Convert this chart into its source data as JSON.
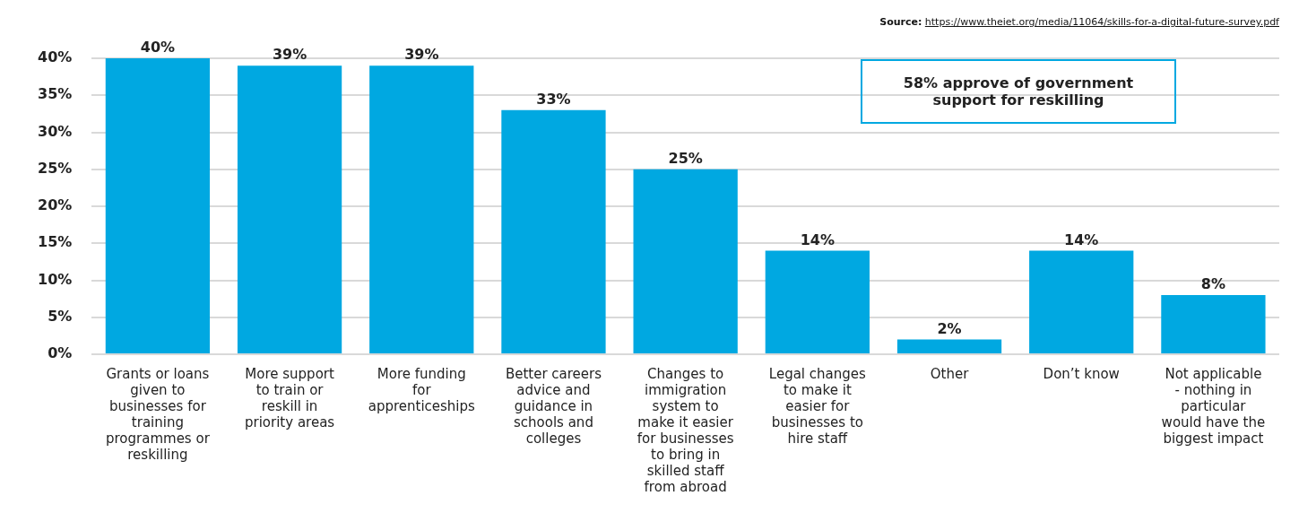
{
  "chart_data": {
    "type": "bar",
    "categories": [
      "Grants or loans given to businesses for training programmes or reskilling",
      "More support to train or reskill in priority areas",
      "More funding for apprenticeships",
      "Better careers advice and guidance in schools and colleges",
      "Changes to immigration system to make it easier for businesses to bring in skilled staff from abroad",
      "Legal changes to make it easier for businesses to hire staff",
      "Other",
      "Don’t know",
      "Not applicable - nothing in particular would have the biggest impact"
    ],
    "values": [
      40,
      39,
      39,
      33,
      25,
      14,
      2,
      14,
      8
    ],
    "value_labels": [
      "40%",
      "39%",
      "39%",
      "33%",
      "25%",
      "14%",
      "2%",
      "14%",
      "8%"
    ],
    "color": "#00a8e1",
    "ylim": [
      0,
      40
    ],
    "yticks": [
      {
        "value": 0,
        "label": "0%"
      },
      {
        "value": 5,
        "label": "5%"
      },
      {
        "value": 10,
        "label": "10%"
      },
      {
        "value": 15,
        "label": "15%"
      },
      {
        "value": 20,
        "label": "20%"
      },
      {
        "value": 25,
        "label": "25%"
      },
      {
        "value": 30,
        "label": "30%"
      },
      {
        "value": 35,
        "label": "35%"
      },
      {
        "value": 40,
        "label": "40%"
      }
    ],
    "grid": "y",
    "legend": false,
    "annotations": [
      "Source: https://www.theiet.org/media/11064/skills-for-a-digital-future-survey.pdf",
      "58% approve of government support for reskilling"
    ]
  }
}
